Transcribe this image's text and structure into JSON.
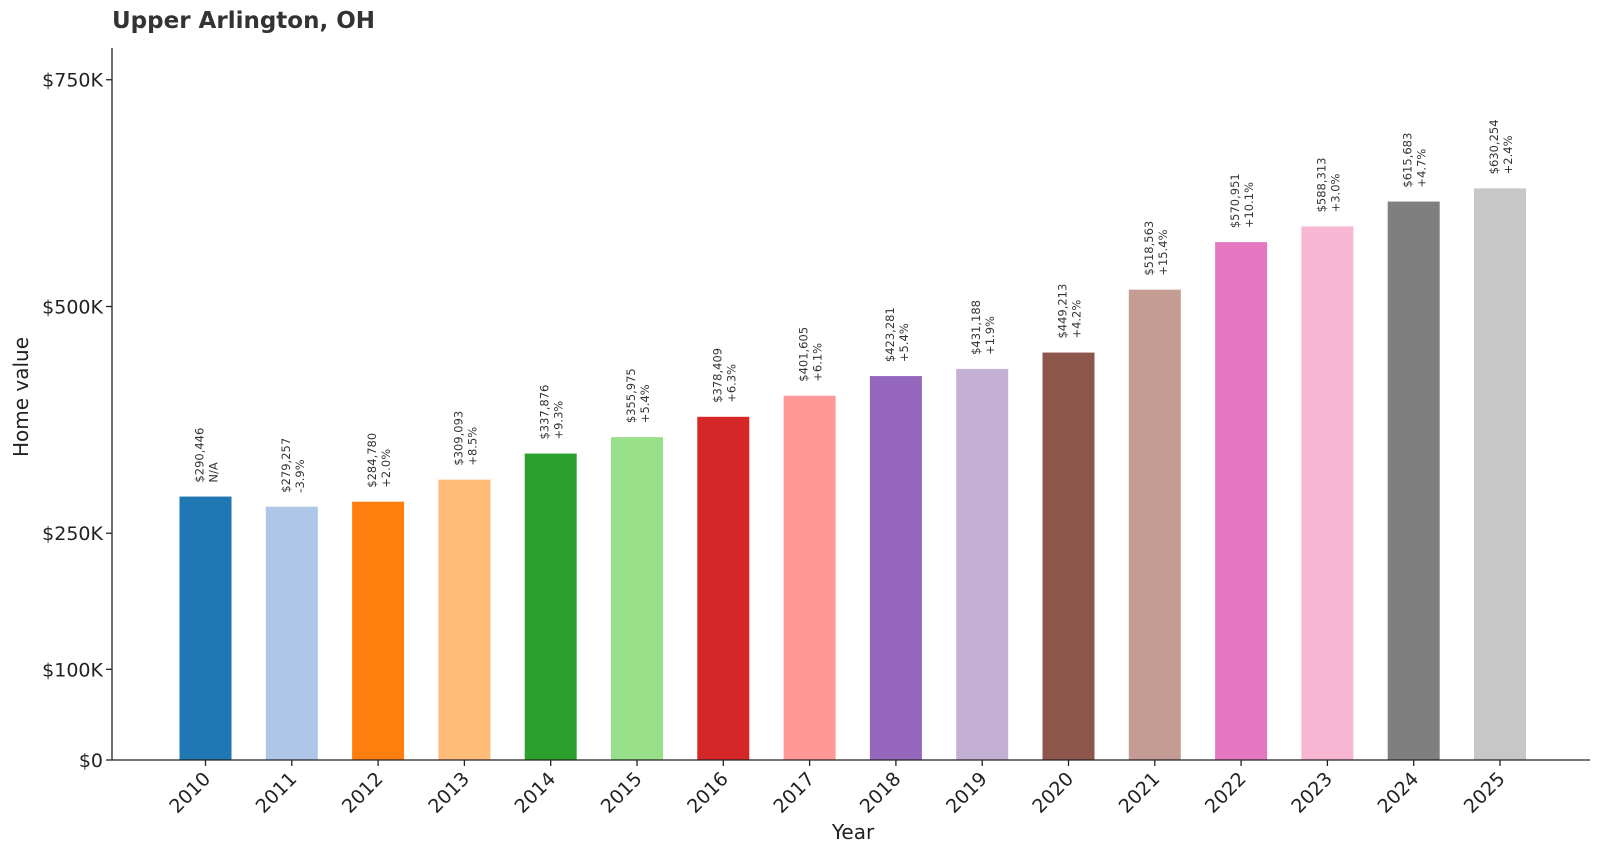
{
  "chart_data": {
    "type": "bar",
    "title": "Upper Arlington, OH",
    "xlabel": "Year",
    "ylabel": "Home value",
    "categories": [
      "2010",
      "2011",
      "2012",
      "2013",
      "2014",
      "2015",
      "2016",
      "2017",
      "2018",
      "2019",
      "2020",
      "2021",
      "2022",
      "2023",
      "2024",
      "2025"
    ],
    "values": [
      290446,
      279257,
      284780,
      309093,
      337876,
      355975,
      378409,
      401605,
      423281,
      431188,
      449213,
      518563,
      570951,
      588313,
      615683,
      630254
    ],
    "value_labels": [
      "$290,446",
      "$279,257",
      "$284,780",
      "$309,093",
      "$337,876",
      "$355,975",
      "$378,409",
      "$401,605",
      "$423,281",
      "$431,188",
      "$449,213",
      "$518,563",
      "$570,951",
      "$588,313",
      "$615,683",
      "$630,254"
    ],
    "change_labels": [
      "N/A",
      "-3.9%",
      "+2.0%",
      "+8.5%",
      "+9.3%",
      "+5.4%",
      "+6.3%",
      "+6.1%",
      "+5.4%",
      "+1.9%",
      "+4.2%",
      "+15.4%",
      "+10.1%",
      "+3.0%",
      "+4.7%",
      "+2.4%"
    ],
    "colors": [
      "#1f77b4",
      "#aec7e8",
      "#ff7f0e",
      "#ffbb78",
      "#2ca02c",
      "#98df8a",
      "#d62728",
      "#ff9896",
      "#9467bd",
      "#c5b0d5",
      "#8c564b",
      "#c49c94",
      "#e377c2",
      "#f7b6d2",
      "#7f7f7f",
      "#c7c7c7"
    ],
    "yticks": [
      0,
      100000,
      250000,
      500000,
      750000
    ],
    "ytick_labels": [
      "$0",
      "$100K",
      "$250K",
      "$500K",
      "$750K"
    ],
    "ylim": [
      0,
      785000
    ],
    "grid": false,
    "legend": "none"
  }
}
